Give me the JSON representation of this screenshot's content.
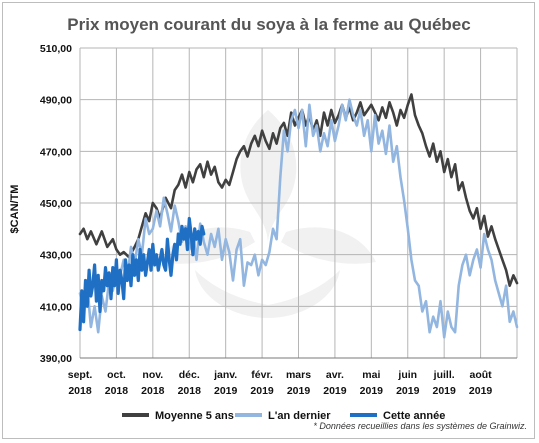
{
  "chart_data": {
    "type": "line",
    "title": "Prix moyen courant du soya à la ferme au Québec",
    "ylabel": "$CAN/TM",
    "ylim": [
      390,
      510
    ],
    "yticks": [
      "390,00",
      "410,00",
      "430,00",
      "450,00",
      "470,00",
      "490,00",
      "510,00"
    ],
    "ytick_values": [
      390,
      410,
      430,
      450,
      470,
      490,
      510
    ],
    "xticks": [
      {
        "line1": "sept.",
        "line2": "2018"
      },
      {
        "line1": "oct.",
        "line2": "2018"
      },
      {
        "line1": "nov.",
        "line2": "2018"
      },
      {
        "line1": "déc.",
        "line2": "2018"
      },
      {
        "line1": "janv.",
        "line2": "2019"
      },
      {
        "line1": "févr.",
        "line2": "2019"
      },
      {
        "line1": "mars",
        "line2": "2019"
      },
      {
        "line1": "avr.",
        "line2": "2019"
      },
      {
        "line1": "mai",
        "line2": "2019"
      },
      {
        "line1": "juin",
        "line2": "2019"
      },
      {
        "line1": "juill.",
        "line2": "2019"
      },
      {
        "line1": "août",
        "line2": "2019"
      }
    ],
    "grid": true,
    "legend_position": "bottom",
    "x_unit": "months since start of Sept. 2018",
    "xlim": [
      0,
      12
    ],
    "series": [
      {
        "name": "Moyenne 5 ans",
        "color": "#404040",
        "width": 2.6,
        "x": [
          0,
          0.1,
          0.2,
          0.3,
          0.45,
          0.6,
          0.75,
          0.9,
          1.0,
          1.1,
          1.2,
          1.35,
          1.5,
          1.6,
          1.7,
          1.8,
          1.9,
          2.0,
          2.1,
          2.2,
          2.35,
          2.5,
          2.6,
          2.7,
          2.8,
          2.9,
          3.0,
          3.1,
          3.2,
          3.3,
          3.4,
          3.5,
          3.6,
          3.7,
          3.8,
          3.9,
          4.0,
          4.1,
          4.2,
          4.3,
          4.4,
          4.5,
          4.6,
          4.7,
          4.8,
          4.9,
          5.0,
          5.1,
          5.2,
          5.3,
          5.4,
          5.5,
          5.6,
          5.7,
          5.8,
          5.9,
          6.0,
          6.1,
          6.2,
          6.3,
          6.4,
          6.5,
          6.6,
          6.7,
          6.8,
          6.9,
          7.0,
          7.1,
          7.2,
          7.3,
          7.4,
          7.5,
          7.6,
          7.7,
          7.8,
          7.9,
          8.0,
          8.1,
          8.2,
          8.3,
          8.4,
          8.5,
          8.6,
          8.7,
          8.8,
          8.9,
          9.0,
          9.1,
          9.2,
          9.3,
          9.4,
          9.5,
          9.6,
          9.7,
          9.8,
          9.9,
          10.0,
          10.1,
          10.2,
          10.3,
          10.4,
          10.5,
          10.6,
          10.7,
          10.8,
          10.9,
          11.0,
          11.1,
          11.2,
          11.3,
          11.4,
          11.5,
          11.6,
          11.7,
          11.8,
          11.9,
          12.0
        ],
        "values": [
          438,
          440,
          436,
          439,
          434,
          439,
          433,
          436,
          432,
          430,
          431,
          429,
          433,
          436,
          441,
          446,
          443,
          450,
          448,
          444,
          452,
          448,
          455,
          457,
          461,
          456,
          462,
          458,
          463,
          465,
          460,
          466,
          461,
          464,
          458,
          456,
          459,
          457,
          462,
          467,
          470,
          472,
          468,
          473,
          476,
          472,
          478,
          474,
          471,
          477,
          473,
          479,
          481,
          476,
          485,
          480,
          483,
          486,
          480,
          484,
          478,
          482,
          476,
          485,
          480,
          486,
          481,
          484,
          488,
          483,
          487,
          482,
          485,
          489,
          484,
          486,
          488,
          485,
          482,
          487,
          483,
          489,
          485,
          480,
          486,
          483,
          488,
          492,
          484,
          480,
          477,
          472,
          468,
          473,
          466,
          470,
          462,
          467,
          460,
          465,
          455,
          458,
          452,
          447,
          444,
          448,
          440,
          445,
          437,
          441,
          436,
          432,
          428,
          424,
          418,
          422,
          419
        ]
      },
      {
        "name": "L'an dernier",
        "color": "#92b6e0",
        "width": 2.6,
        "x": [
          0,
          0.1,
          0.2,
          0.3,
          0.4,
          0.5,
          0.6,
          0.7,
          0.8,
          0.9,
          1.0,
          1.1,
          1.2,
          1.3,
          1.4,
          1.5,
          1.6,
          1.7,
          1.8,
          1.9,
          2.0,
          2.1,
          2.2,
          2.3,
          2.4,
          2.5,
          2.6,
          2.7,
          2.8,
          2.9,
          3.0,
          3.1,
          3.2,
          3.3,
          3.4,
          3.5,
          3.6,
          3.7,
          3.8,
          3.9,
          4.0,
          4.1,
          4.2,
          4.3,
          4.4,
          4.5,
          4.6,
          4.7,
          4.8,
          4.9,
          5.0,
          5.1,
          5.2,
          5.3,
          5.4,
          5.5,
          5.6,
          5.7,
          5.8,
          5.9,
          6.0,
          6.1,
          6.2,
          6.3,
          6.4,
          6.5,
          6.6,
          6.7,
          6.8,
          6.9,
          7.0,
          7.1,
          7.2,
          7.3,
          7.4,
          7.5,
          7.6,
          7.7,
          7.8,
          7.9,
          8.0,
          8.1,
          8.2,
          8.3,
          8.4,
          8.5,
          8.6,
          8.7,
          8.8,
          8.9,
          9.0,
          9.1,
          9.2,
          9.3,
          9.4,
          9.5,
          9.6,
          9.7,
          9.8,
          9.9,
          10.0,
          10.1,
          10.2,
          10.3,
          10.4,
          10.5,
          10.6,
          10.7,
          10.8,
          10.9,
          11.0,
          11.1,
          11.2,
          11.3,
          11.4,
          11.5,
          11.6,
          11.7,
          11.8,
          11.9,
          12.0
        ],
        "values": [
          415,
          408,
          418,
          402,
          410,
          400,
          414,
          408,
          420,
          416,
          424,
          422,
          428,
          421,
          433,
          426,
          436,
          430,
          444,
          438,
          440,
          447,
          441,
          452,
          446,
          439,
          449,
          443,
          435,
          441,
          432,
          438,
          428,
          442,
          435,
          430,
          438,
          433,
          440,
          428,
          436,
          431,
          420,
          432,
          436,
          418,
          427,
          426,
          430,
          422,
          428,
          426,
          431,
          440,
          436,
          460,
          478,
          470,
          482,
          486,
          479,
          486,
          472,
          488,
          476,
          480,
          470,
          477,
          472,
          482,
          474,
          480,
          488,
          482,
          490,
          484,
          480,
          486,
          476,
          482,
          470,
          484,
          473,
          478,
          469,
          480,
          466,
          472,
          460,
          451,
          440,
          428,
          420,
          418,
          408,
          412,
          400,
          406,
          402,
          412,
          398,
          408,
          402,
          400,
          418,
          426,
          430,
          422,
          428,
          432,
          425,
          438,
          432,
          428,
          420,
          415,
          410,
          418,
          404,
          408,
          402
        ]
      },
      {
        "name": "Cette année",
        "color": "#1f6fc5",
        "width": 3.2,
        "x": [
          0,
          0.05,
          0.1,
          0.15,
          0.2,
          0.25,
          0.3,
          0.35,
          0.4,
          0.45,
          0.5,
          0.55,
          0.6,
          0.65,
          0.7,
          0.75,
          0.8,
          0.85,
          0.9,
          0.95,
          1.0,
          1.05,
          1.1,
          1.15,
          1.2,
          1.25,
          1.3,
          1.35,
          1.4,
          1.45,
          1.5,
          1.55,
          1.6,
          1.65,
          1.7,
          1.75,
          1.8,
          1.85,
          1.9,
          1.95,
          2.0,
          2.05,
          2.1,
          2.15,
          2.2,
          2.25,
          2.3,
          2.35,
          2.4,
          2.45,
          2.5,
          2.55,
          2.6,
          2.65,
          2.7,
          2.75,
          2.8,
          2.85,
          2.9,
          2.95,
          3.0,
          3.05,
          3.1,
          3.15,
          3.2,
          3.25,
          3.3,
          3.35,
          3.4
        ],
        "values": [
          401,
          416,
          404,
          420,
          410,
          424,
          414,
          418,
          426,
          412,
          422,
          408,
          420,
          416,
          425,
          418,
          423,
          413,
          425,
          418,
          428,
          415,
          424,
          420,
          413,
          428,
          420,
          426,
          418,
          430,
          422,
          428,
          420,
          432,
          424,
          430,
          422,
          427,
          432,
          424,
          434,
          426,
          430,
          424,
          428,
          432,
          426,
          424,
          436,
          428,
          422,
          430,
          434,
          428,
          438,
          434,
          441,
          436,
          440,
          432,
          444,
          438,
          430,
          440,
          436,
          439,
          434,
          441,
          438
        ]
      }
    ]
  },
  "note": "* Données recueillies dans les systèmes de Grainwiz."
}
